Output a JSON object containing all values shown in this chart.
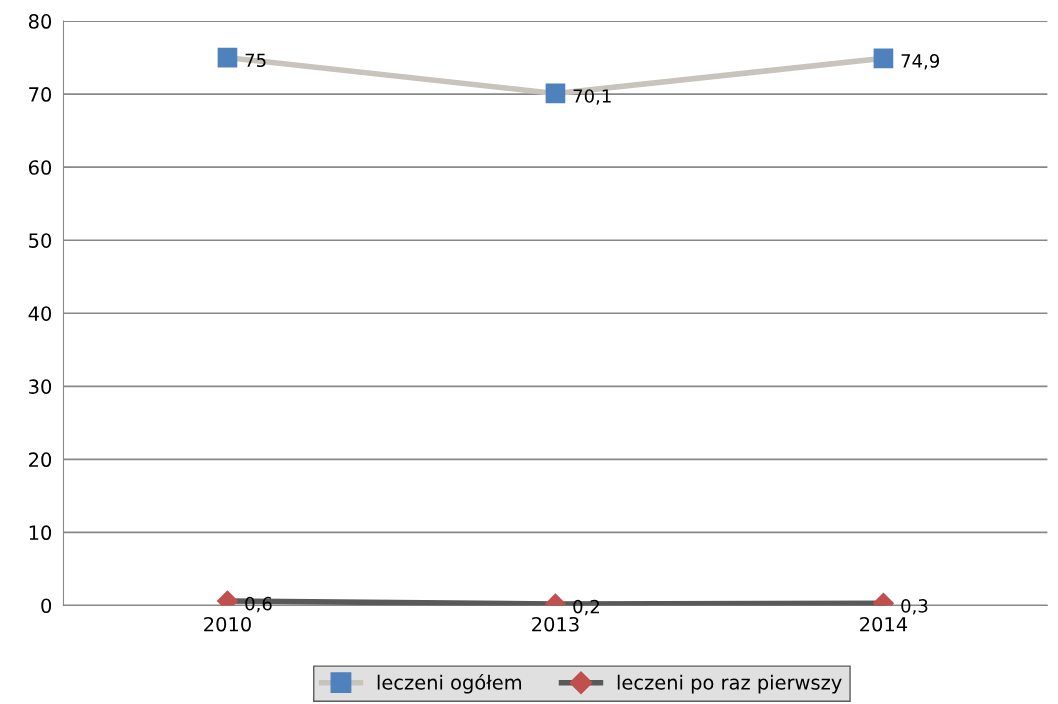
{
  "chart_data": {
    "type": "line",
    "categories": [
      "2010",
      "2013",
      "2014"
    ],
    "series": [
      {
        "name": "leczeni ogółem",
        "color": "#c8c4bc",
        "colors": [
          "#4f81bd",
          "#4f81bd",
          "#4f81bd"
        ],
        "marker": "square",
        "values": [
          75,
          70.1,
          74.9
        ],
        "value_labels": [
          "75",
          "70,1",
          "74,9"
        ]
      },
      {
        "name": "leczeni po raz pierwszy",
        "color": "#595959",
        "colors": [
          "#c0504d",
          "#c0504d",
          "#c0504d"
        ],
        "marker": "diamond",
        "values": [
          0.6,
          0.2,
          0.3
        ],
        "value_labels": [
          "0,6",
          "0,2",
          "0,3"
        ]
      }
    ],
    "ylim": [
      0,
      80
    ],
    "yticks": [
      0,
      10,
      20,
      30,
      40,
      50,
      60,
      70,
      80
    ],
    "grid": "y",
    "legend": "bottom"
  }
}
